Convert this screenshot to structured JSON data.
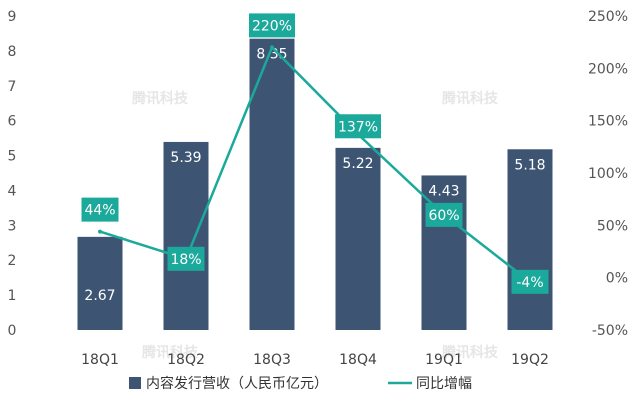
{
  "chart_data": {
    "type": "bar",
    "categories": [
      "18Q1",
      "18Q2",
      "18Q3",
      "18Q4",
      "19Q1",
      "19Q2"
    ],
    "series": [
      {
        "name": "内容发行营收（人民币亿元）",
        "type": "bar",
        "axis": "left",
        "values": [
          2.67,
          5.39,
          8.35,
          5.22,
          4.43,
          5.18
        ],
        "labels": [
          "2.67",
          "5.39",
          "8.35",
          "5.22",
          "4.43",
          "5.18"
        ],
        "color": "#3d5573"
      },
      {
        "name": "同比增幅",
        "type": "line",
        "axis": "right",
        "values": [
          44,
          18,
          220,
          137,
          60,
          -4
        ],
        "labels": [
          "44%",
          "18%",
          "220%",
          "137%",
          "60%",
          "-4%"
        ],
        "color": "#1aa99a"
      }
    ],
    "y_left": {
      "ylim": [
        0,
        9
      ],
      "ticks": [
        "0",
        "1",
        "2",
        "3",
        "4",
        "5",
        "6",
        "7",
        "8",
        "9"
      ]
    },
    "y_right": {
      "ylim": [
        -50,
        250
      ],
      "ticks": [
        "-50%",
        "0%",
        "50%",
        "100%",
        "150%",
        "200%",
        "250%"
      ]
    },
    "legend": {
      "placement": "bottom",
      "items": [
        "内容发行营收（人民币亿元）",
        "同比增幅"
      ]
    },
    "watermark": "腾讯科技",
    "grid": false
  }
}
